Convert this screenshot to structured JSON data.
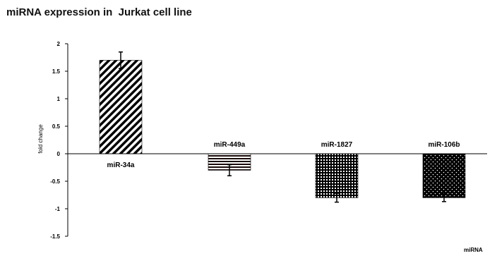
{
  "chart_data": {
    "type": "bar",
    "title": "miRNA expression in  Jurkat cell line",
    "xlabel": "miRNA",
    "ylabel": "fold change",
    "categories": [
      "miR-34a",
      "miR-449a",
      "miR-1827",
      "miR-106b"
    ],
    "values": [
      1.7,
      -0.3,
      -0.8,
      -0.8
    ],
    "errors": [
      0.15,
      0.1,
      0.08,
      0.07
    ],
    "ylim": [
      -1.5,
      2
    ],
    "yticks": [
      "2",
      "1.5",
      "1",
      "0.5",
      "0",
      "-0.5",
      "-1",
      "-1.5"
    ],
    "ytick_values": [
      2,
      1.5,
      1,
      0.5,
      0,
      -0.5,
      -1,
      -1.5
    ],
    "patterns": [
      "diagonal-stripes",
      "horizontal-stripes",
      "grid",
      "dots"
    ],
    "grid": false,
    "legend": "none"
  }
}
